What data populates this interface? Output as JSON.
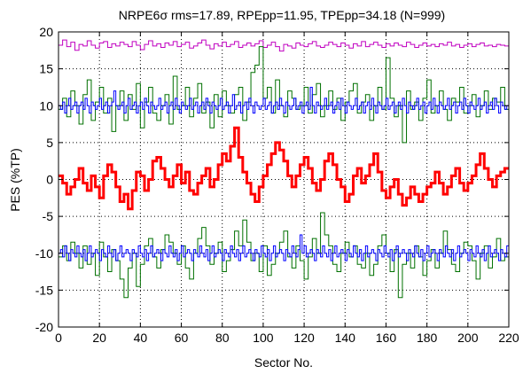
{
  "chart_data": {
    "type": "line",
    "title": "NRPE6σ rms=17.89, RPEpp=11.95, TPEpp=34.18 (N=999)",
    "xlabel": "Sector No.",
    "ylabel": "PES (%TP)",
    "xlim": [
      0,
      220
    ],
    "ylim": [
      -20,
      20
    ],
    "xticks": [
      "0",
      "20",
      "40",
      "60",
      "80",
      "100",
      "120",
      "140",
      "160",
      "180",
      "200",
      "220"
    ],
    "yticks": [
      "20",
      "15",
      "10",
      "5",
      "0",
      "-5",
      "-10",
      "-15",
      "-20"
    ],
    "grid": true,
    "series": [
      {
        "color": "#c000c0",
        "width": 1,
        "x_step": 2,
        "values": [
          18.2,
          18.9,
          18.0,
          18.6,
          17.5,
          18.3,
          18.1,
          18.8,
          18.2,
          17.8,
          18.5,
          18.7,
          17.9,
          18.4,
          18.1,
          18.6,
          18.3,
          18.0,
          18.7,
          18.2,
          17.6,
          18.3,
          18.8,
          18.1,
          18.4,
          17.9,
          18.5,
          18.2,
          18.7,
          18.0,
          18.3,
          18.6,
          17.8,
          18.1,
          18.5,
          18.9,
          18.2,
          17.7,
          18.4,
          18.1,
          18.6,
          18.0,
          18.3,
          18.7,
          17.9,
          18.2,
          18.5,
          18.1,
          18.4,
          18.8,
          17.9,
          18.2,
          18.6,
          18.0,
          17.4,
          18.3,
          18.1,
          17.8,
          18.5,
          18.2,
          18.0,
          18.4,
          18.7,
          18.1,
          17.9,
          18.2,
          18.6,
          18.3,
          18.0,
          18.5,
          18.2,
          17.8,
          18.4,
          18.1,
          18.7,
          18.0,
          18.3,
          18.6,
          18.2,
          17.9,
          18.4,
          18.1,
          18.5,
          18.2,
          18.0,
          18.6,
          18.3,
          17.9,
          18.2,
          18.5,
          18.1,
          18.3,
          18.0,
          18.4,
          18.2,
          18.6,
          18.1,
          18.3,
          17.9,
          18.2,
          18.4,
          18.0,
          18.3,
          18.5,
          18.1,
          18.2,
          18.0,
          18.3,
          18.2,
          18.1
        ]
      },
      {
        "color": "#007000",
        "width": 1,
        "x_step": 2,
        "values": [
          9.5,
          11.0,
          8.5,
          12.0,
          10.0,
          7.5,
          11.5,
          13.5,
          8.0,
          10.5,
          12.5,
          9.0,
          11.0,
          6.5,
          10.0,
          12.0,
          8.0,
          11.5,
          9.5,
          13.0,
          7.0,
          10.5,
          12.5,
          9.0,
          8.0,
          10.0,
          11.5,
          7.5,
          14.0,
          9.5,
          10.0,
          12.5,
          8.5,
          11.0,
          13.0,
          9.0,
          10.5,
          7.0,
          11.5,
          8.5,
          12.0,
          10.0,
          9.0,
          11.5,
          12.5,
          8.0,
          10.5,
          14.5,
          15.5,
          18.0,
          11.0,
          12.5,
          9.0,
          13.5,
          10.0,
          8.5,
          12.0,
          11.0,
          9.5,
          10.0,
          12.5,
          9.0,
          11.5,
          13.0,
          8.5,
          10.0,
          12.0,
          9.5,
          11.0,
          8.0,
          10.5,
          12.0,
          13.0,
          9.0,
          10.5,
          11.5,
          8.0,
          10.0,
          12.5,
          9.5,
          16.5,
          11.0,
          8.5,
          10.0,
          5.0,
          12.0,
          9.5,
          10.5,
          8.0,
          11.0,
          13.5,
          9.0,
          10.0,
          12.0,
          9.5,
          8.0,
          11.0,
          10.5,
          12.5,
          9.0,
          10.0,
          11.5,
          8.5,
          10.0,
          12.0,
          9.5,
          11.0,
          10.5,
          12.5,
          9.5
        ]
      },
      {
        "color": "#0000ff",
        "width": 1,
        "x_step": 1,
        "values": [
          10,
          9.5,
          10.5,
          9,
          10,
          11,
          9.5,
          10,
          10.5,
          9,
          10,
          10.5,
          9.5,
          11,
          10,
          9,
          10.5,
          10,
          9.5,
          10,
          11,
          9.5,
          10,
          10.5,
          9,
          10,
          10.5,
          12,
          10,
          9.5,
          10,
          10.5,
          9,
          10,
          11,
          9.5,
          10,
          10.5,
          9,
          10,
          10.5,
          9.5,
          11,
          10,
          9,
          10.5,
          10,
          9.5,
          10,
          11,
          9.5,
          10,
          10.5,
          9,
          10,
          10.5,
          9.5,
          11,
          10,
          9,
          10.5,
          10,
          9.5,
          10,
          11,
          9.5,
          10,
          10.5,
          9,
          10,
          10.5,
          9.5,
          11,
          10,
          9,
          10.5,
          10,
          9.5,
          10,
          11,
          9.5,
          10,
          10.5,
          9,
          10,
          11.5,
          9.5,
          10,
          10.5,
          9,
          10,
          10.5,
          9.5,
          11,
          10,
          9,
          10.5,
          10,
          9.5,
          10,
          11,
          9.5,
          10,
          10.5,
          9,
          10,
          10.5,
          9.5,
          11,
          10,
          9,
          10.5,
          10,
          9.5,
          10,
          11,
          9.5,
          10,
          10.5,
          9,
          10,
          10.5,
          9.5,
          12.5,
          10,
          9,
          10.5,
          10,
          9.5,
          10,
          11,
          9.5,
          10,
          10.5,
          9,
          10,
          10.5,
          9.5,
          11,
          10,
          9,
          10.5,
          10,
          9.5,
          10,
          11,
          9.5,
          10,
          10.5,
          9,
          10,
          10.5,
          9.5,
          11,
          10,
          9,
          10.5,
          10,
          9.5,
          10,
          11,
          9.5,
          10,
          10.5,
          9,
          10,
          10.5,
          9.5,
          11,
          10,
          9,
          10.5,
          10,
          9.5,
          10,
          11,
          9.5,
          10,
          10.5,
          9,
          10,
          10.5,
          9.5,
          11,
          10,
          9,
          10.5,
          10,
          9.5,
          10,
          11,
          9.5,
          10,
          10.5,
          9,
          10,
          10.5,
          9.5,
          11,
          10,
          9,
          10.5,
          10,
          9.5,
          10,
          11,
          9.5,
          10,
          10.5,
          9,
          10,
          10.5,
          9.5,
          11,
          10,
          9,
          10.5,
          10,
          9.5,
          10,
          11,
          9.5,
          10,
          10.5,
          9,
          10,
          10.5,
          9.5
        ]
      },
      {
        "color": "#ff0000",
        "width": 3,
        "x_step": 2,
        "values": [
          0.5,
          -0.5,
          -2.0,
          -1.0,
          0.0,
          1.5,
          -0.5,
          -1.5,
          0.5,
          -1.0,
          -2.5,
          0.5,
          2.0,
          1.0,
          -1.0,
          -3.0,
          -2.0,
          -4.0,
          -1.5,
          1.0,
          0.5,
          -1.5,
          0.0,
          2.5,
          3.0,
          1.5,
          0.0,
          -1.0,
          0.5,
          2.0,
          -0.5,
          1.0,
          -1.5,
          -2.0,
          -0.5,
          0.5,
          1.5,
          -1.0,
          0.0,
          2.0,
          3.5,
          2.5,
          4.5,
          7.0,
          3.0,
          1.0,
          -0.5,
          -2.0,
          -3.0,
          -1.0,
          0.5,
          2.0,
          3.5,
          5.0,
          4.0,
          2.5,
          0.5,
          -1.0,
          0.5,
          2.0,
          3.0,
          1.5,
          -0.5,
          -1.5,
          0.0,
          2.5,
          3.5,
          2.0,
          0.0,
          -1.0,
          -3.0,
          -2.0,
          0.5,
          1.5,
          -0.5,
          0.5,
          2.0,
          3.5,
          1.0,
          -1.5,
          -2.5,
          -1.0,
          0.0,
          -2.0,
          -3.5,
          -2.5,
          -1.0,
          -2.0,
          -3.0,
          -2.0,
          -1.0,
          -0.5,
          1.0,
          -0.5,
          -2.0,
          -1.0,
          0.5,
          1.5,
          -0.5,
          -1.5,
          -0.5,
          0.5,
          2.0,
          3.5,
          1.5,
          0.0,
          -1.0,
          0.5,
          1.0,
          1.5
        ]
      },
      {
        "color": "#007000",
        "width": 1,
        "x_step": 2,
        "values": [
          -10.5,
          -9.0,
          -11.0,
          -8.5,
          -10.0,
          -12.0,
          -9.0,
          -11.5,
          -10.0,
          -13.0,
          -8.5,
          -10.5,
          -12.5,
          -9.5,
          -11.0,
          -13.5,
          -16.0,
          -12.0,
          -10.0,
          -14.5,
          -11.5,
          -9.0,
          -8.0,
          -10.5,
          -12.0,
          -9.5,
          -7.5,
          -8.5,
          -10.0,
          -11.5,
          -9.0,
          -12.0,
          -13.5,
          -10.0,
          -8.0,
          -6.5,
          -9.0,
          -11.5,
          -10.0,
          -8.5,
          -12.5,
          -11.0,
          -9.5,
          -7.0,
          -9.0,
          -5.5,
          -8.5,
          -11.0,
          -10.0,
          -12.5,
          -9.0,
          -13.0,
          -11.5,
          -10.0,
          -8.5,
          -7.0,
          -10.5,
          -12.0,
          -9.0,
          -11.0,
          -13.5,
          -10.5,
          -8.0,
          -10.0,
          -4.5,
          -7.5,
          -9.0,
          -11.5,
          -12.5,
          -10.0,
          -8.5,
          -10.5,
          -9.0,
          -11.5,
          -12.0,
          -10.0,
          -13.0,
          -11.5,
          -9.0,
          -7.5,
          -10.0,
          -12.5,
          -9.5,
          -16.0,
          -11.5,
          -10.0,
          -12.0,
          -9.0,
          -10.5,
          -13.0,
          -11.0,
          -9.5,
          -12.0,
          -10.0,
          -7.0,
          -9.5,
          -11.5,
          -12.5,
          -10.0,
          -8.5,
          -9.0,
          -11.0,
          -13.5,
          -10.0,
          -9.0,
          -12.0,
          -10.5,
          -8.0,
          -11.0,
          -10.5,
          -9.5
        ]
      },
      {
        "color": "#0000ff",
        "width": 1,
        "x_step": 1,
        "values": [
          -10,
          -9.5,
          -10.5,
          -9,
          -10,
          -11,
          -9.5,
          -10,
          -10.5,
          -9,
          -10,
          -10.5,
          -9.5,
          -11,
          -10,
          -9,
          -10.5,
          -10,
          -9.5,
          -10,
          -11,
          -9.5,
          -10,
          -10.5,
          -9,
          -10,
          -10.5,
          -9.5,
          -11,
          -10,
          -9,
          -10.5,
          -10,
          -9.5,
          -10,
          -11,
          -9.5,
          -10,
          -10.5,
          -9,
          -10,
          -10.5,
          -9.5,
          -11,
          -10,
          -9,
          -10.5,
          -10,
          -9.5,
          -10,
          -11,
          -9.5,
          -10,
          -10.5,
          -9,
          -10,
          -10.5,
          -9.5,
          -11,
          -10,
          -9,
          -10.5,
          -10,
          -9.5,
          -10,
          -11,
          -9.5,
          -10,
          -10.5,
          -9,
          -10,
          -10.5,
          -9.5,
          -11,
          -10,
          -9,
          -10.5,
          -10,
          -9.5,
          -10,
          -11,
          -9.5,
          -10,
          -10.5,
          -9,
          -10,
          -10.5,
          -9.5,
          -11,
          -10,
          -9,
          -10.5,
          -10,
          -9.5,
          -10,
          -11,
          -9.5,
          -10,
          -10.5,
          -9,
          -10,
          -10.5,
          -9.5,
          -11,
          -10,
          -9,
          -10.5,
          -10,
          -9.5,
          -10,
          -11,
          -9.5,
          -10,
          -10.5,
          -9,
          -10,
          -10.5,
          -9.5,
          -7.5,
          -10,
          -9,
          -10.5,
          -10,
          -9.5,
          -10,
          -11,
          -9.5,
          -10,
          -10.5,
          -9,
          -10,
          -10.5,
          -9.5,
          -11,
          -10,
          -9,
          -10.5,
          -10,
          -9.5,
          -10,
          -11,
          -9.5,
          -10,
          -10.5,
          -9,
          -10,
          -10.5,
          -9.5,
          -11,
          -10,
          -9,
          -10.5,
          -10,
          -9.5,
          -10,
          -11,
          -9.5,
          -10,
          -10.5,
          -9,
          -10,
          -10.5,
          -9.5,
          -11,
          -10,
          -9,
          -10.5,
          -10,
          -9.5,
          -10,
          -11,
          -9.5,
          -10,
          -10.5,
          -9,
          -10,
          -10.5,
          -9.5,
          -11,
          -10,
          -9,
          -10.5,
          -10,
          -9.5,
          -10,
          -11,
          -9.5,
          -10,
          -10.5,
          -9,
          -10,
          -10.5,
          -9.5,
          -11,
          -10,
          -9,
          -10.5,
          -10,
          -9.5,
          -10,
          -11,
          -9.5,
          -10,
          -10.5,
          -9,
          -10,
          -10.5,
          -9.5,
          -11,
          -10,
          -9,
          -10.5,
          -10,
          -9.5,
          -10,
          -11,
          -9.5,
          -10,
          -10.5,
          -9,
          -10,
          -10.5,
          -9.5
        ]
      }
    ]
  }
}
